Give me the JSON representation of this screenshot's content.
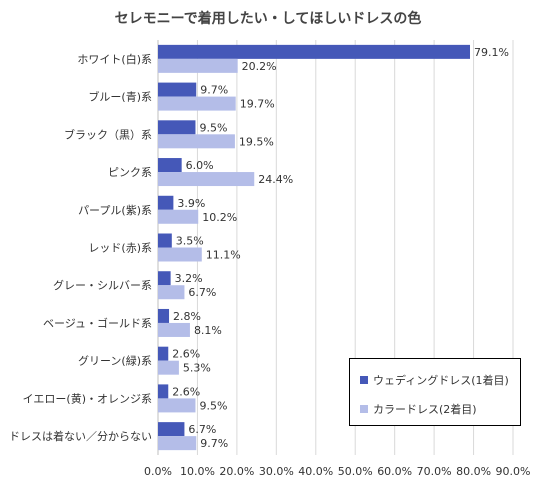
{
  "chart_data": {
    "type": "bar",
    "orientation": "horizontal",
    "title": "セレモニーで着用したい・してほしいドレスの色",
    "categories": [
      "ホワイト(白)系",
      "ブルー(青)系",
      "ブラック（黒）系",
      "ピンク系",
      "パープル(紫)系",
      "レッド(赤)系",
      "グレー・シルバー系",
      "ベージュ・ゴールド系",
      "グリーン(緑)系",
      "イエロー(黄)・オレンジ系",
      "ドレスは着ない／分からない"
    ],
    "series": [
      {
        "name": "ウェディングドレス(1着目)",
        "color": "#4558b8",
        "values": [
          79.1,
          9.7,
          9.5,
          6.0,
          3.9,
          3.5,
          3.2,
          2.8,
          2.6,
          2.6,
          6.7
        ]
      },
      {
        "name": "カラードレス(2着目)",
        "color": "#b4bde8",
        "values": [
          20.2,
          19.7,
          19.5,
          24.4,
          10.2,
          11.1,
          6.7,
          8.1,
          5.3,
          9.5,
          9.7
        ]
      }
    ],
    "value_labels": [
      [
        "79.1%",
        "9.7%",
        "9.5%",
        "6.0%",
        "3.9%",
        "3.5%",
        "3.2%",
        "2.8%",
        "2.6%",
        "2.6%",
        "6.7%"
      ],
      [
        "20.2%",
        "19.7%",
        "19.5%",
        "24.4%",
        "10.2%",
        "11.1%",
        "6.7%",
        "8.1%",
        "5.3%",
        "9.5%",
        "9.7%"
      ]
    ],
    "xlim": [
      0,
      90
    ],
    "xticks": [
      0,
      10,
      20,
      30,
      40,
      50,
      60,
      70,
      80,
      90
    ],
    "xtick_labels": [
      "0.0%",
      "10.0%",
      "20.0%",
      "30.0%",
      "40.0%",
      "50.0%",
      "60.0%",
      "70.0%",
      "80.0%",
      "90.0%"
    ],
    "grid": true,
    "legend_position": "bottom-right"
  }
}
